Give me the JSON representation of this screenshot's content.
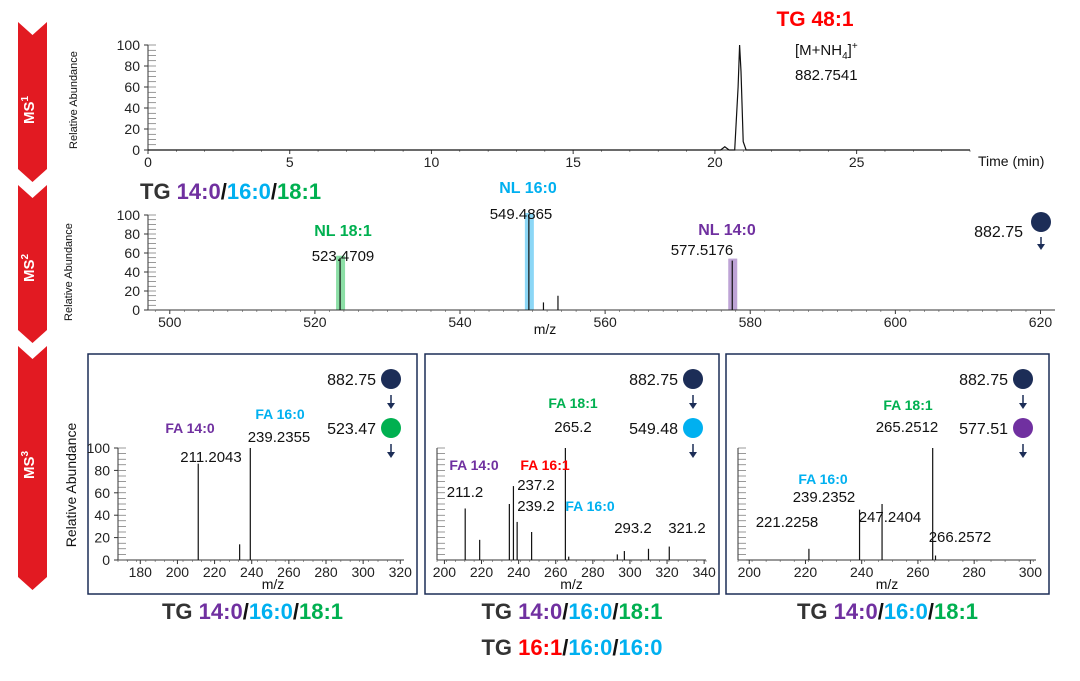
{
  "colors": {
    "arrow_red": "#e21a22",
    "navy": "#1c2d57",
    "purple": "#7030a0",
    "cyan": "#00b0f0",
    "green": "#00b050",
    "red": "#ff0000",
    "black": "#111111",
    "highlight_green": "#7fdb9c",
    "highlight_cyan": "#7fd3f5",
    "highlight_purple": "#b79ad2"
  },
  "stages": [
    {
      "label": "MS",
      "sup": "1"
    },
    {
      "label": "MS",
      "sup": "2"
    },
    {
      "label": "MS",
      "sup": "3"
    }
  ],
  "ms1": {
    "ylabel": "Relative Abundance",
    "xlabel": "Time (min)",
    "peak_name": "TG 48:1",
    "adduct_prefix": "[M+NH",
    "adduct_sub": "4",
    "adduct_suffix": "]",
    "adduct_sup": "+",
    "peak_mz": "882.7541"
  },
  "ms2": {
    "ylabel": "Relative Abundance",
    "xlabel": "m/z",
    "title_prefix": "TG ",
    "title_parts": [
      {
        "text": "14:0",
        "color": "#7030a0"
      },
      {
        "text": "/",
        "color": "#111111"
      },
      {
        "text": "16:0",
        "color": "#00b0f0"
      },
      {
        "text": "/",
        "color": "#111111"
      },
      {
        "text": "18:1",
        "color": "#00b050"
      }
    ],
    "precursor": "882.75",
    "labels": [
      {
        "name": "NL 18:1",
        "value": "523.4709",
        "color": "#00b050"
      },
      {
        "name": "NL 16:0",
        "value": "549.4865",
        "color": "#00b0f0"
      },
      {
        "name": "NL 14:0",
        "value": "577.5176",
        "color": "#7030a0"
      }
    ]
  },
  "ms3_panels": [
    {
      "precursor": "882.75",
      "second": "523.47",
      "second_color": "#00b050",
      "ylabel": "Relative Abundance",
      "xlabel": "m/z",
      "peak_labels": [
        {
          "name": "FA 14:0",
          "value": "211.2043",
          "color": "#7030a0"
        },
        {
          "name": "FA 16:0",
          "value": "239.2355",
          "color": "#00b0f0"
        }
      ],
      "assignments": [
        {
          "prefix": "TG ",
          "parts": [
            {
              "text": "14:0",
              "color": "#7030a0"
            },
            {
              "text": "/",
              "color": "#111111"
            },
            {
              "text": "16:0",
              "color": "#00b0f0"
            },
            {
              "text": "/",
              "color": "#111111"
            },
            {
              "text": "18:1",
              "color": "#00b050"
            }
          ]
        }
      ]
    },
    {
      "precursor": "882.75",
      "second": "549.48",
      "second_color": "#00b0f0",
      "xlabel": "m/z",
      "peak_labels": [
        {
          "name": "FA 18:1",
          "value": "265.2",
          "color": "#00b050"
        },
        {
          "name": "FA 14:0",
          "value": "211.2",
          "color": "#7030a0"
        },
        {
          "name": "FA 16:1",
          "value": "237.2",
          "color": "#ff0000"
        },
        {
          "name": "FA 16:0",
          "value": "239.2",
          "color": "#00b0f0"
        },
        {
          "name": "",
          "value": "293.2",
          "color": "#111111"
        },
        {
          "name": "",
          "value": "321.2",
          "color": "#111111"
        }
      ],
      "assignments": [
        {
          "prefix": "TG ",
          "parts": [
            {
              "text": "14:0",
              "color": "#7030a0"
            },
            {
              "text": "/",
              "color": "#111111"
            },
            {
              "text": "16:0",
              "color": "#00b0f0"
            },
            {
              "text": "/",
              "color": "#111111"
            },
            {
              "text": "18:1",
              "color": "#00b050"
            }
          ]
        },
        {
          "prefix": "TG ",
          "parts": [
            {
              "text": "16:1",
              "color": "#ff0000"
            },
            {
              "text": "/",
              "color": "#111111"
            },
            {
              "text": "16:0",
              "color": "#00b0f0"
            },
            {
              "text": "/",
              "color": "#111111"
            },
            {
              "text": "16:0",
              "color": "#00b0f0"
            }
          ]
        }
      ]
    },
    {
      "precursor": "882.75",
      "second": "577.51",
      "second_color": "#7030a0",
      "xlabel": "m/z",
      "peak_labels": [
        {
          "name": "FA 18:1",
          "value": "265.2512",
          "color": "#00b050"
        },
        {
          "name": "FA 16:0",
          "value": "239.2352",
          "color": "#00b0f0"
        },
        {
          "name": "",
          "value": "221.2258",
          "color": "#111111"
        },
        {
          "name": "",
          "value": "247.2404",
          "color": "#111111"
        },
        {
          "name": "",
          "value": "266.2572",
          "color": "#111111"
        }
      ],
      "assignments": [
        {
          "prefix": "TG ",
          "parts": [
            {
              "text": "14:0",
              "color": "#7030a0"
            },
            {
              "text": "/",
              "color": "#111111"
            },
            {
              "text": "16:0",
              "color": "#00b0f0"
            },
            {
              "text": "/",
              "color": "#111111"
            },
            {
              "text": "18:1",
              "color": "#00b050"
            }
          ]
        }
      ]
    }
  ],
  "chart_data": [
    {
      "type": "line",
      "title": "MS1",
      "xlabel": "Time (min)",
      "ylabel": "Relative Abundance",
      "xlim": [
        0,
        29
      ],
      "ylim": [
        0,
        100
      ],
      "xticks": [
        0,
        5,
        10,
        15,
        20,
        25
      ],
      "yticks": [
        0,
        20,
        40,
        60,
        80,
        100
      ],
      "x": [
        0,
        20.2,
        20.35,
        20.5,
        20.7,
        20.82,
        20.87,
        20.92,
        21.0,
        21.1,
        29
      ],
      "y": [
        0,
        0,
        3,
        0,
        0,
        60,
        100,
        75,
        8,
        0,
        0
      ]
    },
    {
      "type": "bar",
      "title": "MS2",
      "xlabel": "m/z",
      "ylabel": "Relative Abundance",
      "xlim": [
        497,
        622
      ],
      "ylim": [
        0,
        100
      ],
      "xticks": [
        500,
        520,
        540,
        560,
        580,
        600,
        620
      ],
      "yticks": [
        0,
        20,
        40,
        60,
        80,
        100
      ],
      "x": [
        523.47,
        549.49,
        551.5,
        553.5,
        577.52
      ],
      "values": [
        55,
        100,
        8,
        15,
        52
      ]
    },
    {
      "type": "bar",
      "title": "MS3 523.47",
      "xlabel": "m/z",
      "ylabel": "Relative Abundance",
      "xlim": [
        168,
        322
      ],
      "ylim": [
        0,
        100
      ],
      "xticks": [
        180,
        200,
        220,
        240,
        260,
        280,
        300,
        320
      ],
      "yticks": [
        0,
        20,
        40,
        60,
        80,
        100
      ],
      "x": [
        211.2043,
        233.5,
        239.2355
      ],
      "values": [
        86,
        14,
        100
      ]
    },
    {
      "type": "bar",
      "title": "MS3 549.48",
      "xlabel": "m/z",
      "ylim": [
        0,
        100
      ],
      "xlim": [
        196,
        341
      ],
      "xticks": [
        200,
        220,
        240,
        260,
        280,
        300,
        320,
        340
      ],
      "x": [
        211.2,
        219,
        235,
        237.2,
        239.2,
        247,
        265.2,
        267,
        293.2,
        297,
        310,
        321.2
      ],
      "values": [
        46,
        18,
        50,
        66,
        34,
        25,
        100,
        3,
        5,
        8,
        10,
        12
      ]
    },
    {
      "type": "bar",
      "title": "MS3 577.51",
      "xlabel": "m/z",
      "ylim": [
        0,
        100
      ],
      "xlim": [
        196,
        302
      ],
      "xticks": [
        200,
        220,
        240,
        260,
        280,
        300
      ],
      "x": [
        221.2258,
        239.2352,
        247.2404,
        265.2512,
        266.2572
      ],
      "values": [
        10,
        45,
        50,
        100,
        4
      ]
    }
  ]
}
